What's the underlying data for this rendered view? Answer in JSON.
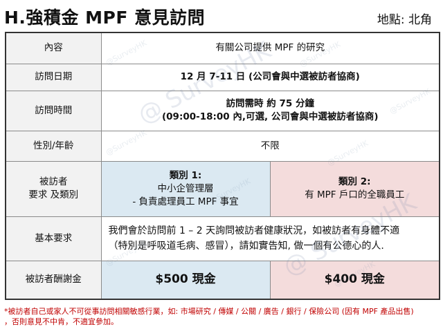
{
  "header": {
    "title": "H.強積金 MPF 意見訪問",
    "location": "地點: 北角"
  },
  "watermark": {
    "small": "@SurveyHK",
    "large": "@ SurveyHK"
  },
  "rows": {
    "content": {
      "label": "內容",
      "value": "有關公司提供 MPF 的研究"
    },
    "date": {
      "label": "訪問日期",
      "value": "12 月 7-11 日 (公司會與中選被訪者協商)"
    },
    "time": {
      "label": "訪問時間",
      "line1": "訪問需時 約 75 分鐘",
      "line2": "(09:00-18:00 內,可選, 公司會與中選被訪者協商)"
    },
    "gender_age": {
      "label": "性別/年齡",
      "value": "不限"
    },
    "requirements": {
      "label_line1": "被訪者",
      "label_line2": "要求 及類別",
      "cat1_title": "類別 1:",
      "cat1_line1": "中小企管理層",
      "cat1_line2": "- 負責處理員工 MPF 事宜",
      "cat2_title": "類別 2:",
      "cat2_line1": "有 MPF 戶口的全職員工"
    },
    "basic": {
      "label": "基本要求",
      "line1": "我們會於訪問前 1 – 2 天詢問被訪者健康狀況，如被訪者有身體不適",
      "line2": "（特別是呼吸道毛病、感冒），請如實告知, 做一個有公德心的人."
    },
    "reward": {
      "label": "被訪者酬謝金",
      "cat1": "$500 現金",
      "cat2": "$400 現金"
    }
  },
  "footnote": {
    "line1": "*被訪者自己或家人不可從事訪問相關敏感行業，如: 市場研究 / 傳媒 / 公關 / 廣告 / 銀行 / 保險公司 (因有 MPF 產品出售)",
    "line2": "，否則意見不中肯，不適宜參加。"
  },
  "colors": {
    "category1_bg": "#dbe9f2",
    "category2_bg": "#f4dcdc",
    "label_bg": "#f2f2f2",
    "note_text": "#c00000"
  }
}
